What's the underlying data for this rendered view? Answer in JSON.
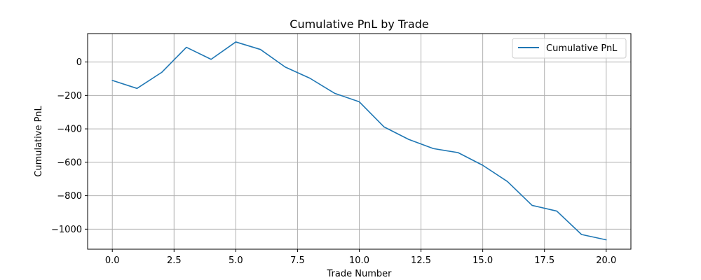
{
  "chart_data": {
    "type": "line",
    "title": "Cumulative PnL by Trade",
    "xlabel": "Trade Number",
    "ylabel": "Cumulative PnL",
    "xlim": [
      -1.0,
      21.0
    ],
    "ylim": [
      -1120,
      170
    ],
    "xticks": [
      0.0,
      2.5,
      5.0,
      7.5,
      10.0,
      12.5,
      15.0,
      17.5,
      20.0
    ],
    "xtick_labels": [
      "0.0",
      "2.5",
      "5.0",
      "7.5",
      "10.0",
      "12.5",
      "15.0",
      "17.5",
      "20.0"
    ],
    "yticks": [
      0,
      -200,
      -400,
      -600,
      -800,
      -1000
    ],
    "ytick_labels": [
      "0",
      "−200",
      "−400",
      "−600",
      "−800",
      "−1000"
    ],
    "grid": true,
    "legend_position": "top-right",
    "series": [
      {
        "name": "Cumulative PnL",
        "color": "#1f77b4",
        "x": [
          0,
          1,
          2,
          3,
          4,
          5,
          6,
          7,
          8,
          9,
          10,
          11,
          12,
          13,
          14,
          15,
          16,
          17,
          18,
          19,
          20
        ],
        "y": [
          -110,
          -158,
          -62,
          88,
          16,
          120,
          75,
          -30,
          -97,
          -187,
          -238,
          -388,
          -463,
          -518,
          -542,
          -618,
          -715,
          -858,
          -892,
          -1032,
          -1064
        ]
      }
    ]
  }
}
